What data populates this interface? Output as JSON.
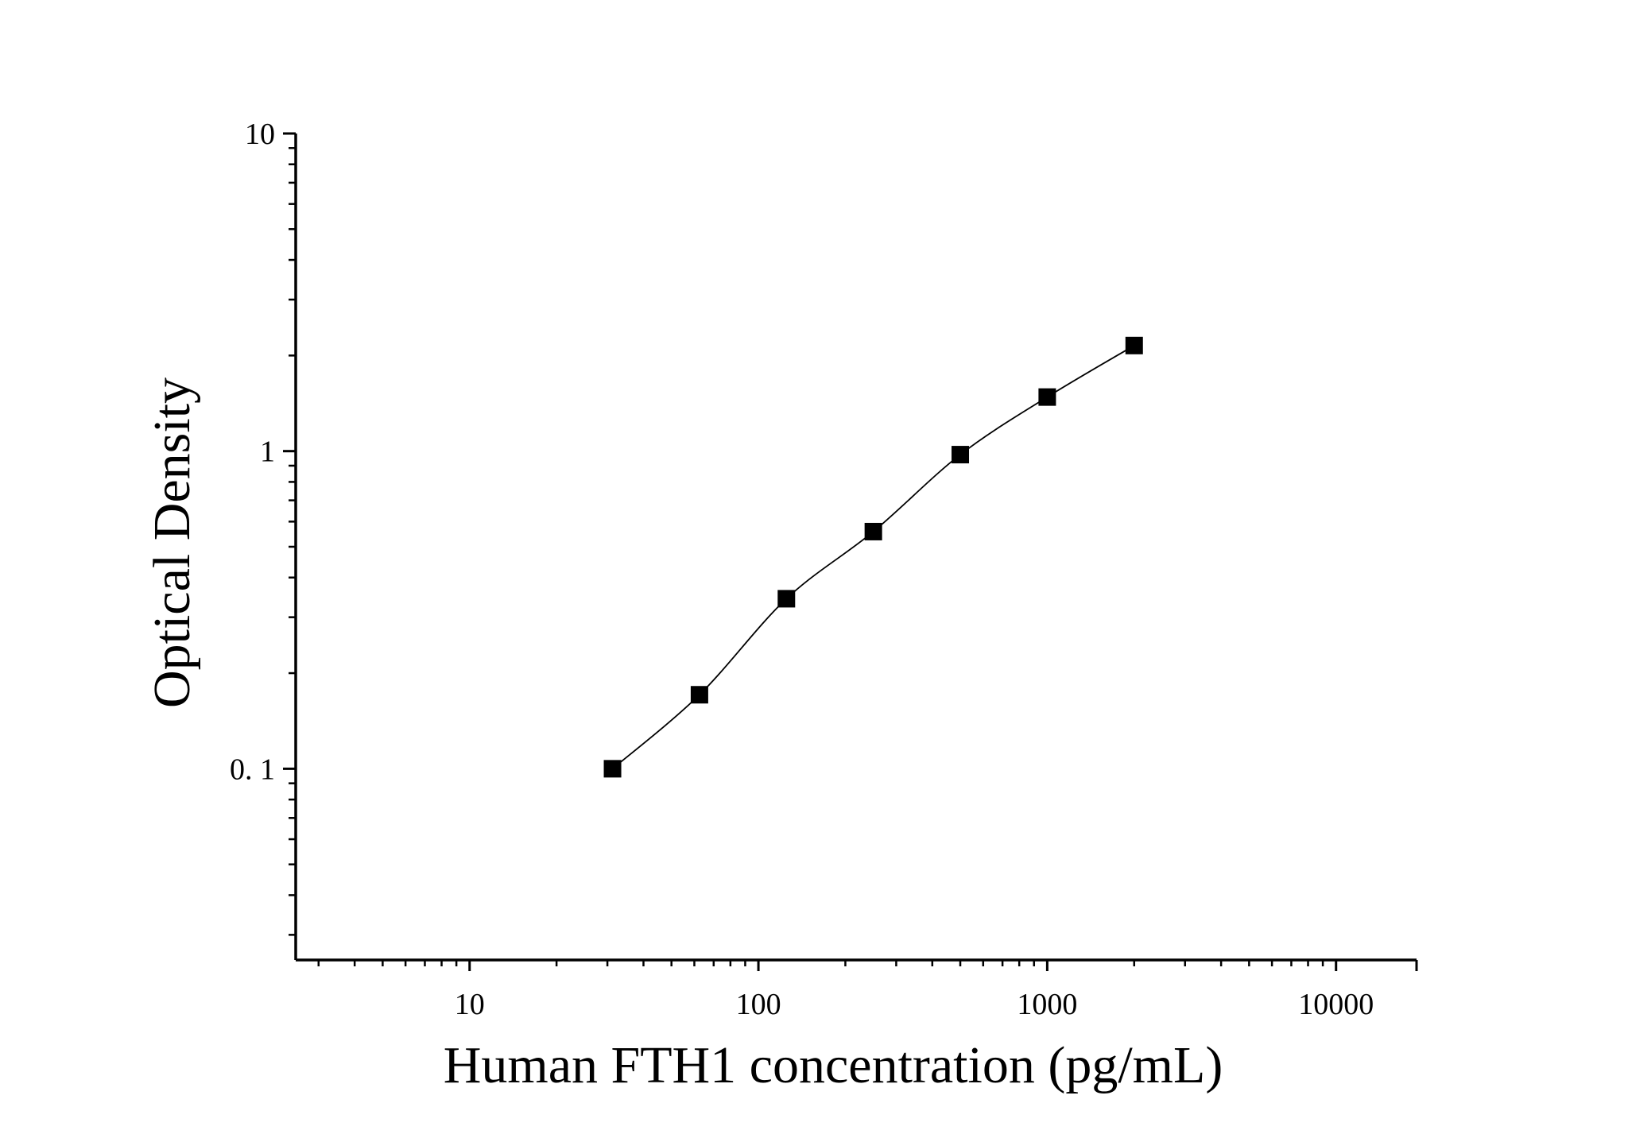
{
  "chart_data": {
    "type": "scatter",
    "xlabel": "Human FTH1 concentration (pg/mL)",
    "ylabel": "Optical Density",
    "x_scale": "log",
    "y_scale": "log",
    "xlim": [
      2.5,
      19000
    ],
    "ylim": [
      0.025,
      10
    ],
    "x_ticks": [
      {
        "value": 10,
        "label": "10"
      },
      {
        "value": 100,
        "label": "100"
      },
      {
        "value": 1000,
        "label": "1000"
      },
      {
        "value": 10000,
        "label": "10000"
      }
    ],
    "y_ticks": [
      {
        "value": 0.1,
        "label": "0. 1"
      },
      {
        "value": 1,
        "label": "1"
      },
      {
        "value": 10,
        "label": "10"
      }
    ],
    "grid": false,
    "legend": "none",
    "marker_color": "#000000",
    "line_color": "#000000",
    "series": [
      {
        "marker": "square",
        "fit": "smooth-curve",
        "points": [
          {
            "x": 31.25,
            "y": 0.1
          },
          {
            "x": 62.5,
            "y": 0.171
          },
          {
            "x": 125,
            "y": 0.343
          },
          {
            "x": 250,
            "y": 0.558
          },
          {
            "x": 500,
            "y": 0.975
          },
          {
            "x": 1000,
            "y": 1.48
          },
          {
            "x": 2000,
            "y": 2.15
          }
        ]
      }
    ]
  }
}
